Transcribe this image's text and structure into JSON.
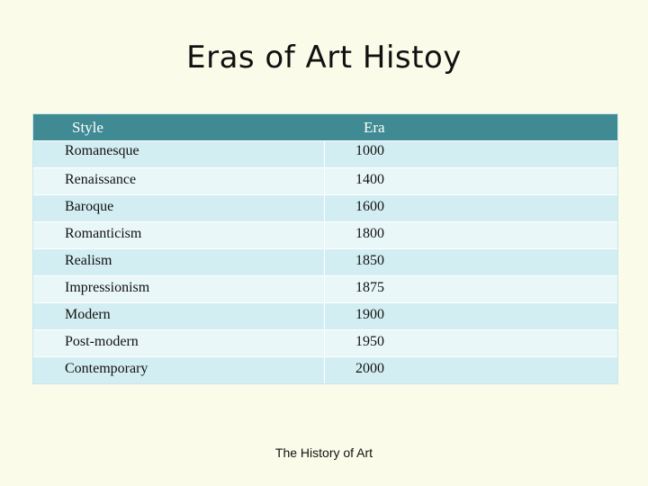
{
  "slide": {
    "title": "Eras of Art Histoy",
    "footer": "The History of Art"
  },
  "table": {
    "headers": [
      "Style",
      "Era"
    ],
    "rows": [
      [
        "Romanesque",
        "1000"
      ],
      [
        "Renaissance",
        "1400"
      ],
      [
        "Baroque",
        "1600"
      ],
      [
        "Romanticism",
        "1800"
      ],
      [
        "Realism",
        "1850"
      ],
      [
        "Impressionism",
        "1875"
      ],
      [
        "Modern",
        "1900"
      ],
      [
        "Post-modern",
        "1950"
      ],
      [
        "Contemporary",
        "2000"
      ]
    ]
  },
  "colors": {
    "background": "#fbfbea",
    "header_fill": "#3f8a93",
    "row_fill_a": "#d3eef2",
    "row_fill_b": "#e9f7f8"
  }
}
